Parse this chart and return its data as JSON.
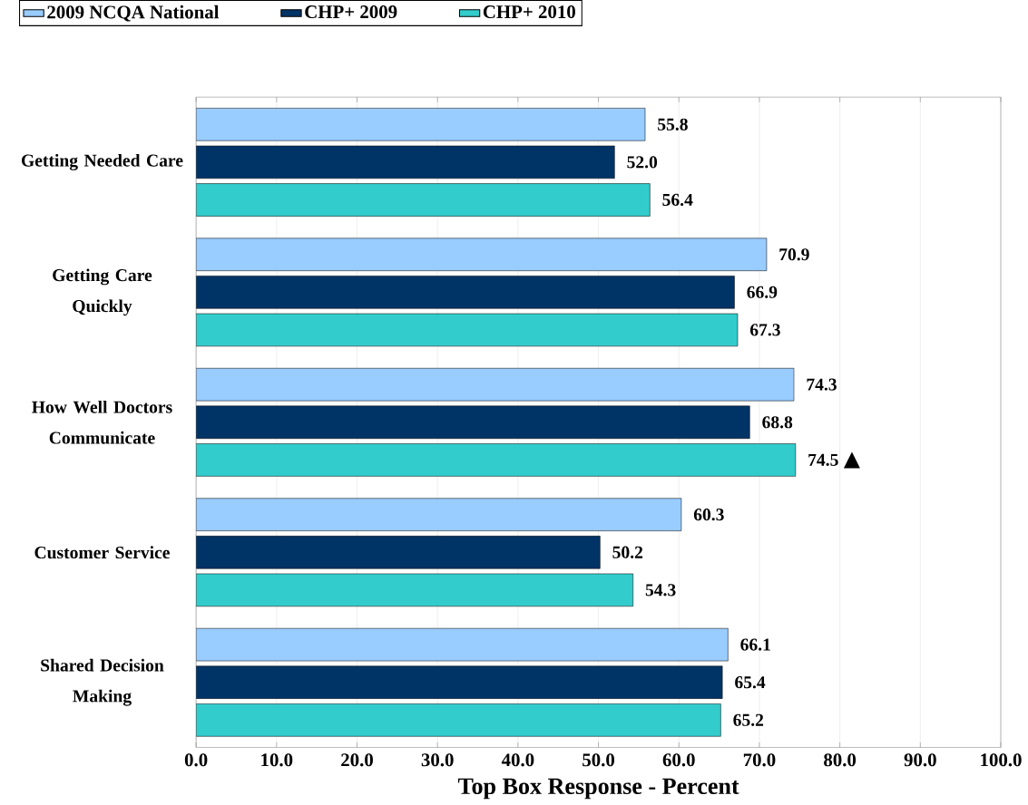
{
  "chart_data": {
    "type": "bar",
    "orientation": "horizontal",
    "xlabel": "Top Box Response - Percent",
    "categories": [
      "Getting Needed Care",
      "Getting Care Quickly",
      "How Well Doctors Communicate",
      "Customer Service",
      "Shared Decision Making"
    ],
    "series": [
      {
        "name": "2009 NCQA National",
        "color": "#99ccff",
        "values": [
          55.8,
          70.9,
          74.3,
          60.3,
          66.1
        ],
        "value_labels": [
          "55.8",
          "70.9",
          "74.3",
          "60.3",
          "66.1"
        ]
      },
      {
        "name": "CHP+ 2009",
        "color": "#003366",
        "values": [
          52.0,
          66.9,
          68.8,
          50.2,
          65.4
        ],
        "value_labels": [
          "52.0",
          "66.9",
          "68.8",
          "50.2",
          "65.4"
        ]
      },
      {
        "name": "CHP+ 2010",
        "color": "#33cccc",
        "values": [
          56.4,
          67.3,
          74.5,
          54.3,
          65.2
        ],
        "value_labels": [
          "56.4",
          "67.3",
          "74.5",
          "54.3",
          "65.2"
        ]
      }
    ],
    "xlim": [
      0,
      100
    ],
    "xticks": [
      {
        "value": 0,
        "label": "0.0"
      },
      {
        "value": 10,
        "label": "10.0"
      },
      {
        "value": 20,
        "label": "20.0"
      },
      {
        "value": 30,
        "label": "30.0"
      },
      {
        "value": 40,
        "label": "40.0"
      },
      {
        "value": 50,
        "label": "50.0"
      },
      {
        "value": 60,
        "label": "60.0"
      },
      {
        "value": 70,
        "label": "70.0"
      },
      {
        "value": 80,
        "label": "80.0"
      },
      {
        "value": 90,
        "label": "90.0"
      },
      {
        "value": 100,
        "label": "100.0"
      }
    ],
    "annotations": [
      "▲"
    ],
    "grid": "x",
    "legend": "top"
  }
}
